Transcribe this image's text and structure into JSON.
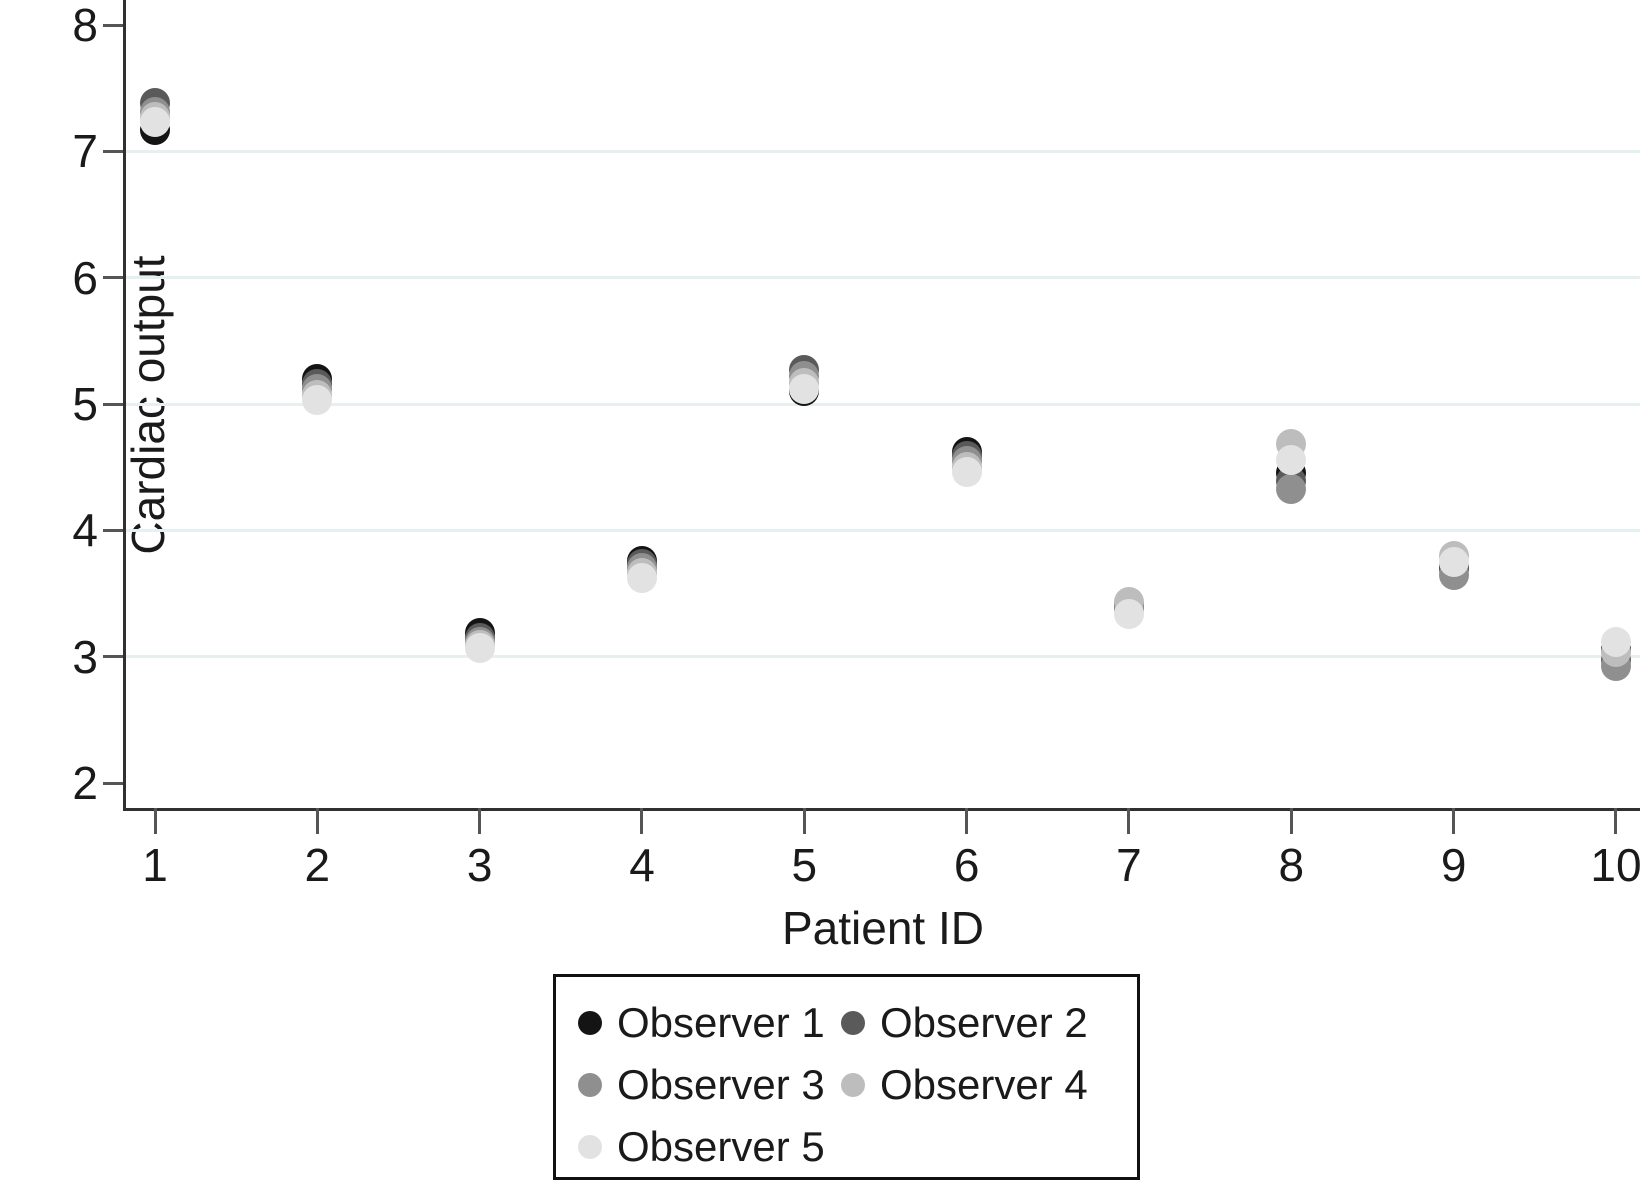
{
  "ui": {
    "xlabel": "Patient ID",
    "ylabel": "Cardiac output"
  },
  "chart_data": {
    "type": "scatter",
    "title": "",
    "xlabel": "Patient ID",
    "ylabel": "Cardiac output",
    "categories": [
      1,
      2,
      3,
      4,
      5,
      6,
      7,
      8,
      9,
      10
    ],
    "x_tick_labels": [
      "1",
      "2",
      "3",
      "4",
      "5",
      "6",
      "7",
      "8",
      "9",
      "10"
    ],
    "y_ticks": [
      2,
      3,
      4,
      5,
      6,
      7,
      8
    ],
    "y_tick_labels": [
      "2",
      "3",
      "4",
      "5",
      "6",
      "7",
      "8"
    ],
    "gridline_values": [
      3,
      4,
      5,
      6,
      7
    ],
    "ylim": [
      1.8,
      8.2
    ],
    "grid": true,
    "legend_position": "below-plot",
    "marker": "circle",
    "series": [
      {
        "name": "Observer 1",
        "color": "#141414",
        "values": [
          7.17,
          5.2,
          3.19,
          3.76,
          5.1,
          4.62,
          3.41,
          4.45,
          3.71,
          3.06
        ]
      },
      {
        "name": "Observer 2",
        "color": "#5a5a5a",
        "values": [
          7.38,
          5.16,
          3.15,
          3.73,
          5.27,
          4.59,
          3.39,
          4.39,
          3.69,
          2.97
        ]
      },
      {
        "name": "Observer 3",
        "color": "#8f8f8f",
        "values": [
          7.31,
          5.12,
          3.12,
          3.7,
          5.22,
          4.55,
          3.38,
          4.33,
          3.65,
          2.93
        ]
      },
      {
        "name": "Observer 4",
        "color": "#bdbdbd",
        "values": [
          7.27,
          5.07,
          3.09,
          3.66,
          5.17,
          4.5,
          3.43,
          4.68,
          3.8,
          3.04
        ]
      },
      {
        "name": "Observer 5",
        "color": "#e2e2e2",
        "values": [
          7.23,
          5.03,
          3.07,
          3.62,
          5.12,
          4.46,
          3.34,
          4.56,
          3.75,
          3.12
        ]
      }
    ],
    "colors": {
      "gridline": "#e7f0f0",
      "axis": "#303030",
      "tick": "#555555",
      "background": "#ffffff"
    }
  },
  "legend": {
    "entries": [
      {
        "label": "Observer 1",
        "color": "#141414"
      },
      {
        "label": "Observer 2",
        "color": "#5a5a5a"
      },
      {
        "label": "Observer 3",
        "color": "#8f8f8f"
      },
      {
        "label": "Observer 4",
        "color": "#bdbdbd"
      },
      {
        "label": "Observer 5",
        "color": "#e2e2e2"
      }
    ]
  }
}
